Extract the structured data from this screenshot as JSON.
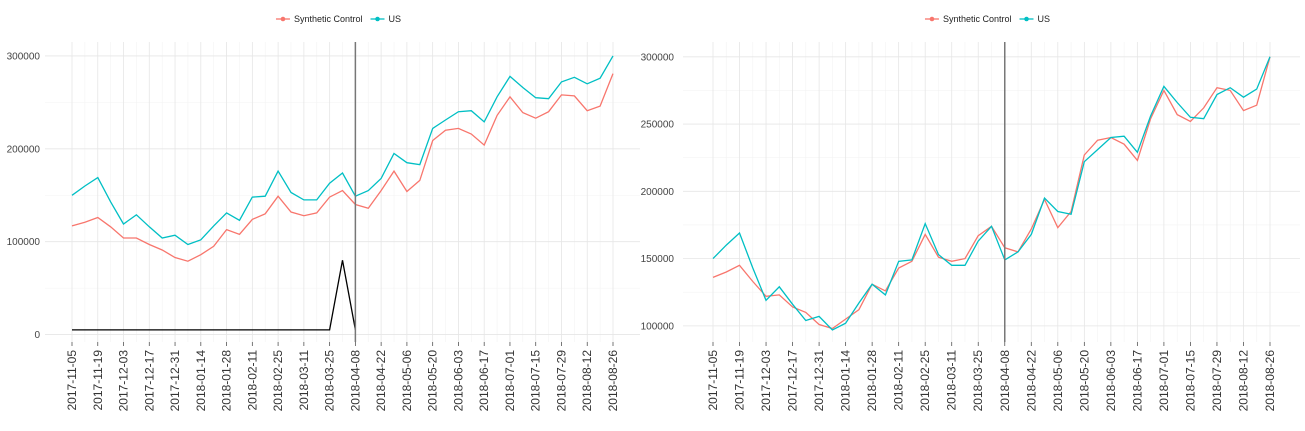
{
  "chart_data": [
    {
      "type": "line",
      "categories": [
        "2017-11-05",
        null,
        "2017-11-19",
        null,
        "2017-12-03",
        null,
        "2017-12-17",
        null,
        "2017-12-31",
        null,
        "2018-01-14",
        null,
        "2018-01-28",
        null,
        "2018-02-11",
        null,
        "2018-02-25",
        null,
        "2018-03-11",
        null,
        "2018-03-25",
        null,
        "2018-04-08",
        null,
        "2018-04-22",
        null,
        "2018-05-06",
        null,
        "2018-05-20",
        null,
        "2018-06-03",
        null,
        "2018-06-17",
        null,
        "2018-07-01",
        null,
        "2018-07-15",
        null,
        "2018-07-29",
        null,
        "2018-08-12",
        null,
        "2018-08-26"
      ],
      "series": [
        {
          "name": "Synthetic Control",
          "color": "#F8766D",
          "values": [
            117000,
            121000,
            126000,
            116000,
            104000,
            104000,
            97000,
            91000,
            83000,
            79000,
            86000,
            95000,
            113000,
            108000,
            124000,
            130000,
            149000,
            132000,
            128000,
            131000,
            148000,
            155000,
            140000,
            136000,
            155000,
            176000,
            154000,
            166000,
            209000,
            220000,
            222000,
            216000,
            204000,
            236000,
            256000,
            239000,
            233000,
            240000,
            258000,
            257000,
            241000,
            246000,
            281000
          ]
        },
        {
          "name": "US",
          "color": "#00BFC4",
          "values": [
            150000,
            160000,
            169000,
            143000,
            119000,
            129000,
            116000,
            104000,
            107000,
            97000,
            102000,
            117000,
            131000,
            123000,
            148000,
            149000,
            176000,
            153000,
            145000,
            145000,
            163000,
            174000,
            149000,
            155000,
            168000,
            195000,
            185000,
            183000,
            222000,
            231000,
            240000,
            241000,
            229000,
            256000,
            278000,
            266000,
            255000,
            254000,
            272000,
            277000,
            270000,
            276000,
            300000
          ]
        },
        {
          "color": "#000000",
          "values": [
            5000,
            5000,
            5000,
            5000,
            5000,
            5000,
            5000,
            5000,
            5000,
            5000,
            5000,
            5000,
            5000,
            5000,
            5000,
            5000,
            5000,
            5000,
            5000,
            5000,
            5000,
            80000,
            5000,
            null,
            null,
            null,
            null,
            null,
            null,
            null,
            null,
            null,
            null,
            null,
            null,
            null,
            null,
            null,
            null,
            null,
            null,
            null,
            null
          ]
        }
      ],
      "vline": "2018-04-08",
      "vline_color": "#777777",
      "ylim": [
        -8000,
        315000
      ],
      "yticks": [
        0,
        100000,
        200000,
        300000
      ],
      "grid": true
    },
    {
      "type": "line",
      "categories": [
        "2017-11-05",
        null,
        "2017-11-19",
        null,
        "2017-12-03",
        null,
        "2017-12-17",
        null,
        "2017-12-31",
        null,
        "2018-01-14",
        null,
        "2018-01-28",
        null,
        "2018-02-11",
        null,
        "2018-02-25",
        null,
        "2018-03-11",
        null,
        "2018-03-25",
        null,
        "2018-04-08",
        null,
        "2018-04-22",
        null,
        "2018-05-06",
        null,
        "2018-05-20",
        null,
        "2018-06-03",
        null,
        "2018-06-17",
        null,
        "2018-07-01",
        null,
        "2018-07-15",
        null,
        "2018-07-29",
        null,
        "2018-08-12",
        null,
        "2018-08-26"
      ],
      "series": [
        {
          "name": "Synthetic Control",
          "color": "#F8766D",
          "values": [
            136000,
            140000,
            145000,
            133000,
            122000,
            123000,
            114000,
            110000,
            101000,
            98000,
            105000,
            112000,
            131000,
            126000,
            143000,
            148000,
            168000,
            151000,
            148000,
            150000,
            167000,
            174000,
            158000,
            155000,
            172000,
            194000,
            173000,
            185000,
            227000,
            238000,
            240000,
            235000,
            223000,
            254000,
            275000,
            257000,
            252000,
            262000,
            277000,
            275000,
            260000,
            264000,
            300000
          ]
        },
        {
          "name": "US",
          "color": "#00BFC4",
          "values": [
            150000,
            160000,
            169000,
            143000,
            119000,
            129000,
            116000,
            104000,
            107000,
            97000,
            102000,
            117000,
            131000,
            123000,
            148000,
            149000,
            176000,
            153000,
            145000,
            145000,
            163000,
            174000,
            149000,
            155000,
            168000,
            195000,
            185000,
            183000,
            222000,
            231000,
            240000,
            241000,
            229000,
            256000,
            278000,
            266000,
            255000,
            254000,
            272000,
            277000,
            270000,
            276000,
            300000
          ]
        }
      ],
      "vline": "2018-04-08",
      "vline_color": "#777777",
      "ylim": [
        88000,
        311000
      ],
      "yticks": [
        100000,
        150000,
        200000,
        250000,
        300000
      ],
      "grid": true
    }
  ]
}
